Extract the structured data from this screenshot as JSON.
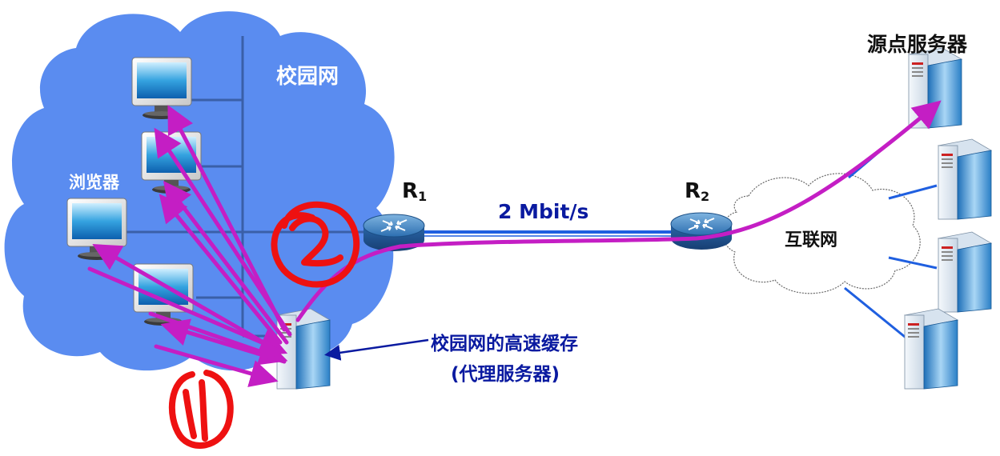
{
  "labels": {
    "campus_network": "校园网",
    "browsers": "浏览器",
    "r1": {
      "main": "R",
      "sub": "1"
    },
    "r2": {
      "main": "R",
      "sub": "2"
    },
    "link_speed": "2 Mbit/s",
    "internet": "互联网",
    "origin_server": "源点服务器",
    "cache_line1": "校园网的高速缓存",
    "cache_line2": "(代理服务器)"
  },
  "annotations": {
    "step1": "1",
    "step2": "2"
  },
  "colors": {
    "campus_cloud": "#5a8cf0",
    "arrow": "#c41ec4",
    "link": "#1f5fe0",
    "handwriting": "#ee1111",
    "label_blue": "#0a1aa0"
  },
  "icons": {
    "computer": "desktop-monitor-icon",
    "router": "router-icon",
    "server": "tower-server-icon",
    "cloud": "cloud-icon"
  }
}
